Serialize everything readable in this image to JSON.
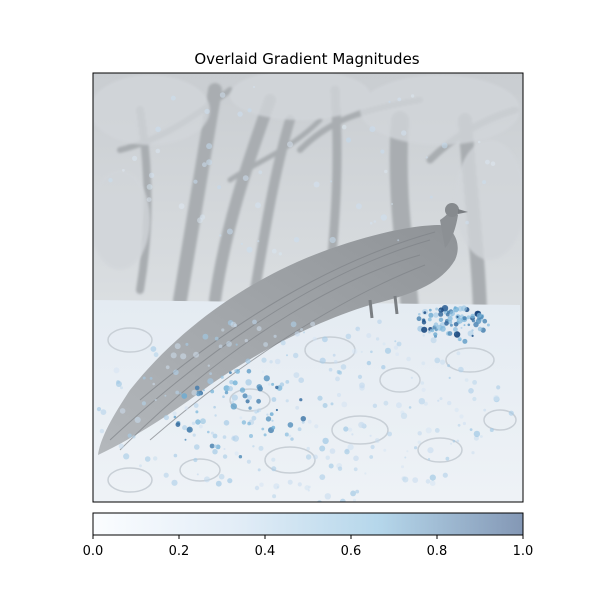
{
  "chart_data": {
    "type": "heatmap",
    "title": "Overlaid Gradient Magnitudes",
    "xlabel": "",
    "ylabel": "",
    "background_image": "inverted-grayscale-photo-peacock-on-stone-wall-with-trees",
    "colormap": {
      "name": "Blues",
      "alpha": 0.5,
      "stops": [
        "#f7fbff",
        "#c6dbef",
        "#6baed6",
        "#08306b"
      ]
    },
    "colorbar": {
      "orientation": "horizontal",
      "range": [
        0.0,
        1.0
      ],
      "ticks": [
        "0.0",
        "0.2",
        "0.4",
        "0.6",
        "0.8",
        "1.0"
      ],
      "tick_values": [
        0.0,
        0.2,
        0.4,
        0.6,
        0.8,
        1.0
      ]
    },
    "axes_ticks_visible": false,
    "high_magnitude_regions": [
      {
        "region": "stone-wall-right-under-peacock-chest",
        "value": 0.95
      },
      {
        "region": "stone-wall-lower-left-below-tail",
        "value": 0.85
      },
      {
        "region": "stone-wall-scattered-speckles",
        "value": 0.5
      },
      {
        "region": "tree-branches-upper",
        "value": 0.35
      }
    ]
  }
}
